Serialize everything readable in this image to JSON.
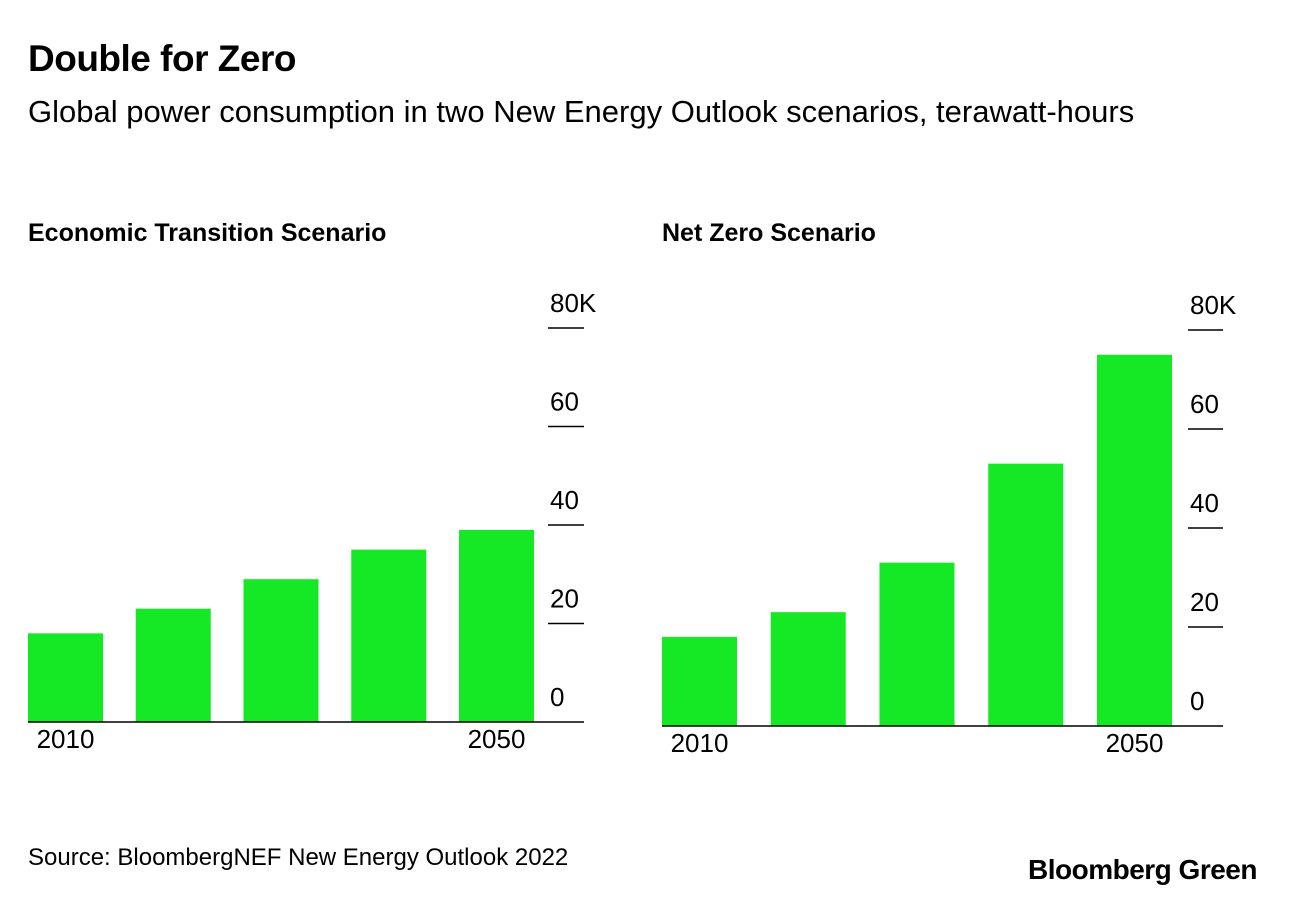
{
  "header": {
    "title": "Double for Zero",
    "subtitle": "Global power consumption in two New Energy Outlook scenarios, terawatt-hours"
  },
  "footer": {
    "source": "Source: BloombergNEF New Energy Outlook 2022",
    "brand": "Bloomberg Green"
  },
  "chart_data": [
    {
      "type": "bar",
      "title": "Economic Transition Scenario",
      "categories": [
        "2010",
        null,
        null,
        null,
        "2050"
      ],
      "values": [
        18,
        23,
        29,
        35,
        39
      ],
      "color": "#15e824",
      "ylim": [
        0,
        80
      ],
      "yticks": [
        0,
        20,
        40,
        60,
        {
          "value": 80,
          "label": "80K"
        }
      ]
    },
    {
      "type": "bar",
      "title": "Net Zero Scenario",
      "categories": [
        "2010",
        null,
        null,
        null,
        "2050"
      ],
      "values": [
        18,
        23,
        33,
        53,
        75
      ],
      "color": "#15e824",
      "ylim": [
        0,
        80
      ],
      "yticks": [
        0,
        20,
        40,
        60,
        {
          "value": 80,
          "label": "80K"
        }
      ]
    }
  ]
}
